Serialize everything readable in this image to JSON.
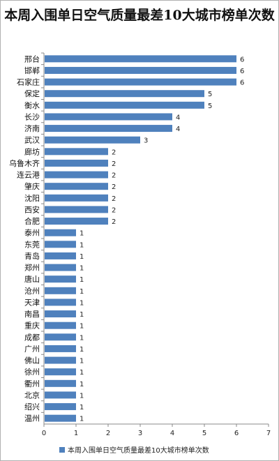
{
  "chart_data": {
    "type": "bar",
    "orientation": "horizontal",
    "title": "本周入围单日空气质量最差10大城市榜单次数",
    "categories": [
      "邢台",
      "邯郸",
      "石家庄",
      "保定",
      "衡水",
      "长沙",
      "济南",
      "武汉",
      "廊坊",
      "乌鲁木齐",
      "连云港",
      "肇庆",
      "沈阳",
      "西安",
      "合肥",
      "泰州",
      "东莞",
      "青岛",
      "郑州",
      "唐山",
      "沧州",
      "天津",
      "南昌",
      "重庆",
      "成都",
      "广州",
      "佛山",
      "徐州",
      "衢州",
      "北京",
      "绍兴",
      "温州"
    ],
    "series": [
      {
        "name": "本周入围单日空气质量最差10大城市榜单次数",
        "values": [
          6,
          6,
          6,
          5,
          5,
          4,
          4,
          3,
          2,
          2,
          2,
          2,
          2,
          2,
          2,
          1,
          1,
          1,
          1,
          1,
          1,
          1,
          1,
          1,
          1,
          1,
          1,
          1,
          1,
          1,
          1,
          1
        ]
      }
    ],
    "x_ticks": [
      "0",
      "1",
      "2",
      "3",
      "4",
      "5",
      "6",
      "7"
    ],
    "xlim": [
      0,
      7
    ],
    "grid": false,
    "legend_position": "bottom",
    "bar_color": "#4f81bd"
  }
}
